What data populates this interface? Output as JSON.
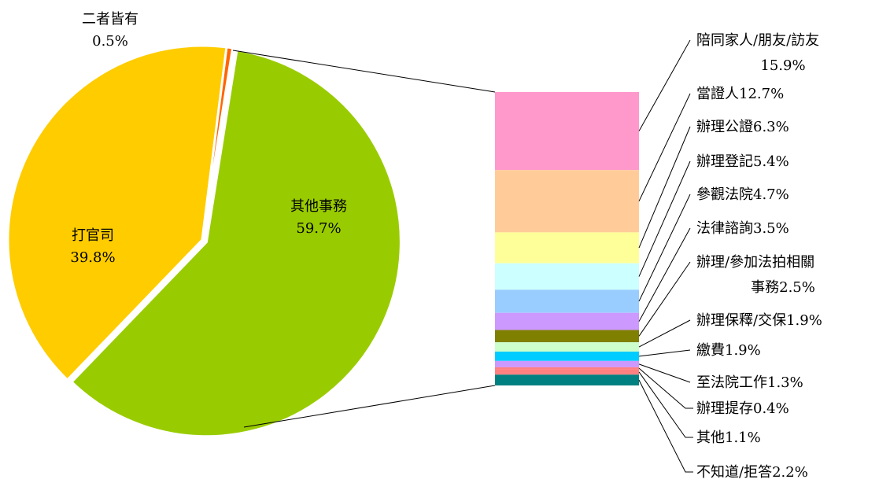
{
  "chart_data": [
    {
      "type": "pie",
      "categories": [
        "其他事務",
        "打官司",
        "二者皆有"
      ],
      "values": [
        59.7,
        39.8,
        0.5
      ],
      "labels": [
        {
          "name": "其他事務",
          "value": "59.7%"
        },
        {
          "name": "打官司",
          "value": "39.8%"
        },
        {
          "name": "二者皆有",
          "value": "0.5%"
        }
      ],
      "colors": [
        "#99CC00",
        "#FFCC00",
        "#FF6600"
      ],
      "exploded_slice": "其他事務",
      "legend": "none"
    },
    {
      "type": "bar",
      "stacked": true,
      "orientation": "vertical",
      "parent_category": "其他事務",
      "categories": [
        "陪同家人/朋友/訪友",
        "當證人",
        "辦理公證",
        "辦理登記",
        "參觀法院",
        "法律諮詢",
        "辦理/參加法拍相關事務",
        "辦理保釋/交保",
        "繳費",
        "至法院工作",
        "辦理提存",
        "其他",
        "不知道/拒答"
      ],
      "values": [
        15.9,
        12.7,
        6.3,
        5.4,
        4.7,
        3.5,
        2.5,
        1.9,
        1.9,
        1.3,
        0.4,
        1.1,
        2.2
      ],
      "labels": [
        [
          "陪同家人/朋友/訪友",
          "15.9%"
        ],
        [
          "當證人12.7%"
        ],
        [
          "辦理公證6.3%"
        ],
        [
          "辦理登記5.4%"
        ],
        [
          "參觀法院4.7%"
        ],
        [
          "法律諮詢3.5%"
        ],
        [
          "辦理/參加法拍相關",
          "事務2.5%"
        ],
        [
          "辦理保釋/交保1.9%"
        ],
        [
          "繳費1.9%"
        ],
        [
          "至法院工作1.3%"
        ],
        [
          "辦理提存0.4%"
        ],
        [
          "其他1.1%"
        ],
        [
          "不知道/拒答2.2%"
        ]
      ],
      "colors": [
        "#FF99CC",
        "#FFCC99",
        "#FFFF99",
        "#CCFFFF",
        "#99CCFF",
        "#CC99FF",
        "#808000",
        "#CCFFCC",
        "#00CCFF",
        "#CC99FF",
        "#FF8080",
        "#FF8080",
        "#008080"
      ],
      "legend": "none"
    }
  ]
}
